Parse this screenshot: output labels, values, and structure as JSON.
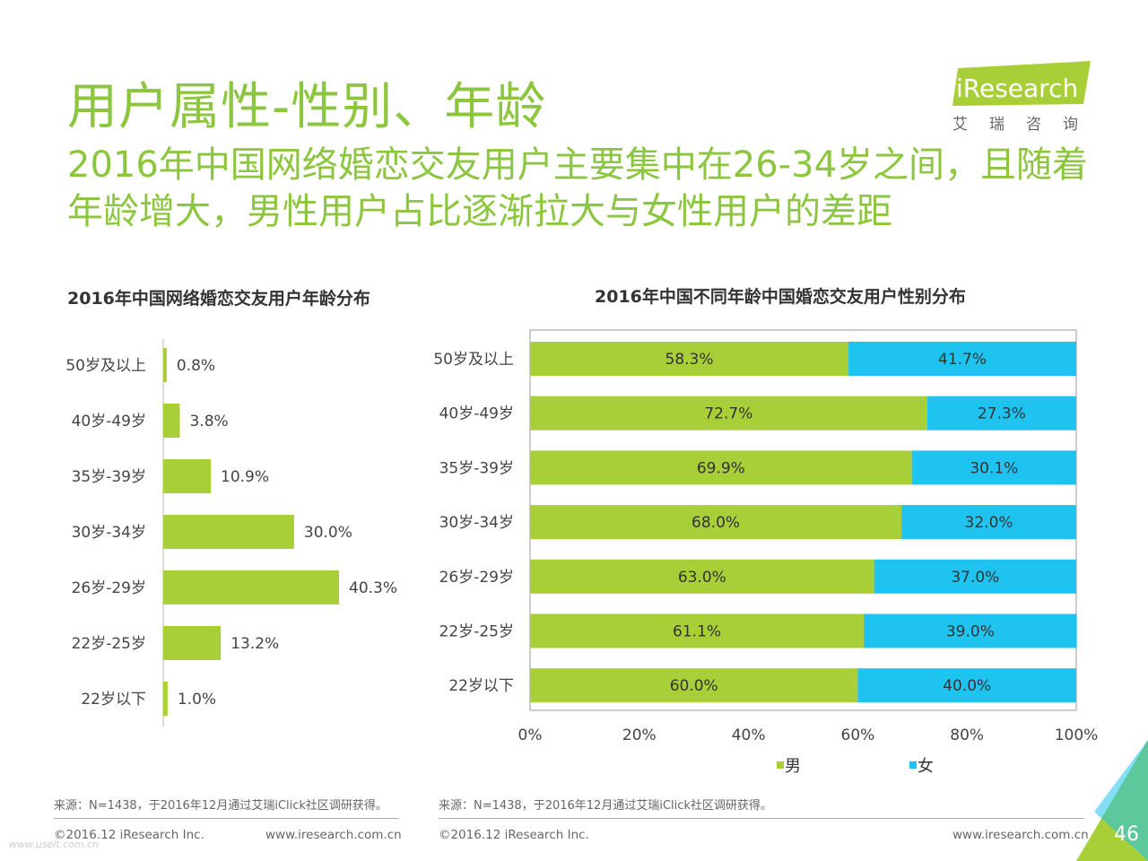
{
  "header": {
    "title": "用户属性-性别、年龄",
    "subtitle": "2016年中国网络婚恋交友用户主要集中在26-34岁之间，且随着年龄增大，男性用户占比逐渐拉大与女性用户的差距"
  },
  "logo": {
    "brand": "iResearch",
    "sub": "艾瑞咨询"
  },
  "colors": {
    "green": "#a9cf38",
    "blue": "#1ec3ef",
    "title_green": "#8cc63f"
  },
  "chart_data": [
    {
      "type": "bar",
      "orientation": "horizontal",
      "title": "2016年中国网络婚恋交友用户年龄分布",
      "categories": [
        "50岁及以上",
        "40岁-49岁",
        "35岁-39岁",
        "30岁-34岁",
        "26岁-29岁",
        "22岁-25岁",
        "22岁以下"
      ],
      "values": [
        0.8,
        3.8,
        10.9,
        30.0,
        40.3,
        13.2,
        1.0
      ],
      "labels": [
        "0.8%",
        "3.8%",
        "10.9%",
        "30.0%",
        "40.3%",
        "13.2%",
        "1.0%"
      ],
      "color": "#a9cf38"
    },
    {
      "type": "bar",
      "orientation": "horizontal",
      "stacked": true,
      "title": "2016年中国不同年龄中国婚恋交友用户性别分布",
      "categories": [
        "50岁及以上",
        "40岁-49岁",
        "35岁-39岁",
        "30岁-34岁",
        "26岁-29岁",
        "22岁-25岁",
        "22岁以下"
      ],
      "series": [
        {
          "name": "男",
          "color": "#a9cf38",
          "values": [
            58.3,
            72.7,
            69.9,
            68.0,
            63.0,
            61.1,
            60.0
          ],
          "labels": [
            "58.3%",
            "72.7%",
            "69.9%",
            "68.0%",
            "63.0%",
            "61.1%",
            "60.0%"
          ]
        },
        {
          "name": "女",
          "color": "#1ec3ef",
          "values": [
            41.7,
            27.3,
            30.1,
            32.0,
            37.0,
            39.0,
            40.0
          ],
          "labels": [
            "41.7%",
            "27.3%",
            "30.1%",
            "32.0%",
            "37.0%",
            "39.0%",
            "40.0%"
          ]
        }
      ],
      "xticks": [
        "0%",
        "20%",
        "40%",
        "60%",
        "80%",
        "100%"
      ],
      "xlim": [
        0,
        100
      ],
      "legend_position": "bottom"
    }
  ],
  "footer": {
    "source": "来源：N=1438，于2016年12月通过艾瑞iClick社区调研获得。",
    "copyright": "©2016.12 iResearch Inc.",
    "website": "www.iresearch.com.cn",
    "page": "46",
    "watermark": "www.useit.com.cn"
  }
}
